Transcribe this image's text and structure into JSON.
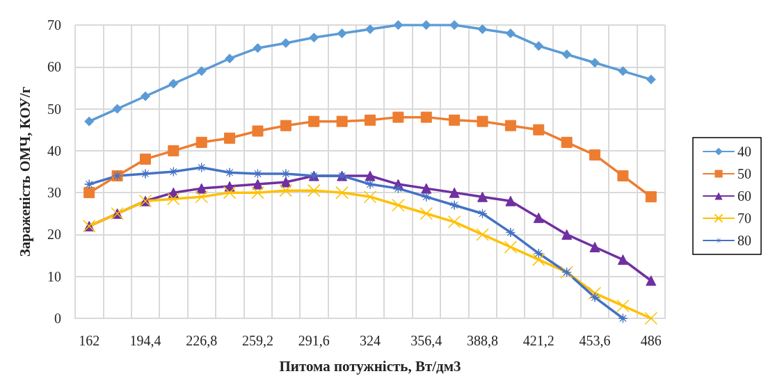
{
  "chart_data": {
    "type": "line",
    "xlabel": "Питома потужність, Вт/дм3",
    "ylabel": "Зараженість ОМЧ, КОУ/г",
    "categories": [
      "162",
      null,
      "194,4",
      null,
      "226,8",
      null,
      "259,2",
      null,
      "291,6",
      null,
      "324",
      null,
      "356,4",
      null,
      "388,8",
      null,
      "421,2",
      null,
      "453,6",
      null,
      "486"
    ],
    "series": [
      {
        "name": "40",
        "color": "#5b9bd5",
        "marker": "diamond",
        "values": [
          47,
          50,
          53,
          56,
          59,
          62,
          64.5,
          65.7,
          67,
          68,
          69,
          70,
          70,
          70,
          69,
          68,
          65,
          63,
          61,
          59,
          57
        ]
      },
      {
        "name": "50",
        "color": "#ed7d31",
        "marker": "square",
        "values": [
          30,
          34,
          38,
          40,
          42,
          43,
          44.7,
          46,
          47,
          47,
          47.3,
          48,
          48,
          47.3,
          47,
          46,
          45,
          42,
          39,
          34,
          29
        ]
      },
      {
        "name": "60",
        "color": "#7030a0",
        "marker": "triangle",
        "values": [
          22,
          25,
          28,
          30,
          31,
          31.5,
          32,
          32.5,
          34,
          34,
          34,
          32,
          31,
          30,
          29,
          28,
          24,
          20,
          17,
          14,
          9
        ]
      },
      {
        "name": "70",
        "color": "#ffc000",
        "marker": "cross",
        "values": [
          22,
          25,
          28,
          28.5,
          29,
          30,
          30,
          30.5,
          30.5,
          30,
          29,
          27,
          25,
          23,
          20,
          17,
          14,
          11,
          6,
          3,
          0
        ]
      },
      {
        "name": "80",
        "color": "#4472c4",
        "marker": "star",
        "values": [
          32,
          34,
          34.5,
          35,
          36,
          34.8,
          34.5,
          34.5,
          34,
          34,
          32,
          31,
          29,
          27,
          25,
          20.5,
          15.5,
          11,
          5,
          0,
          null
        ]
      }
    ],
    "ylim": [
      0,
      70
    ],
    "yticks": [
      0,
      10,
      20,
      30,
      40,
      50,
      60,
      70
    ],
    "grid": true,
    "legend": "right",
    "line_style": "solid"
  }
}
